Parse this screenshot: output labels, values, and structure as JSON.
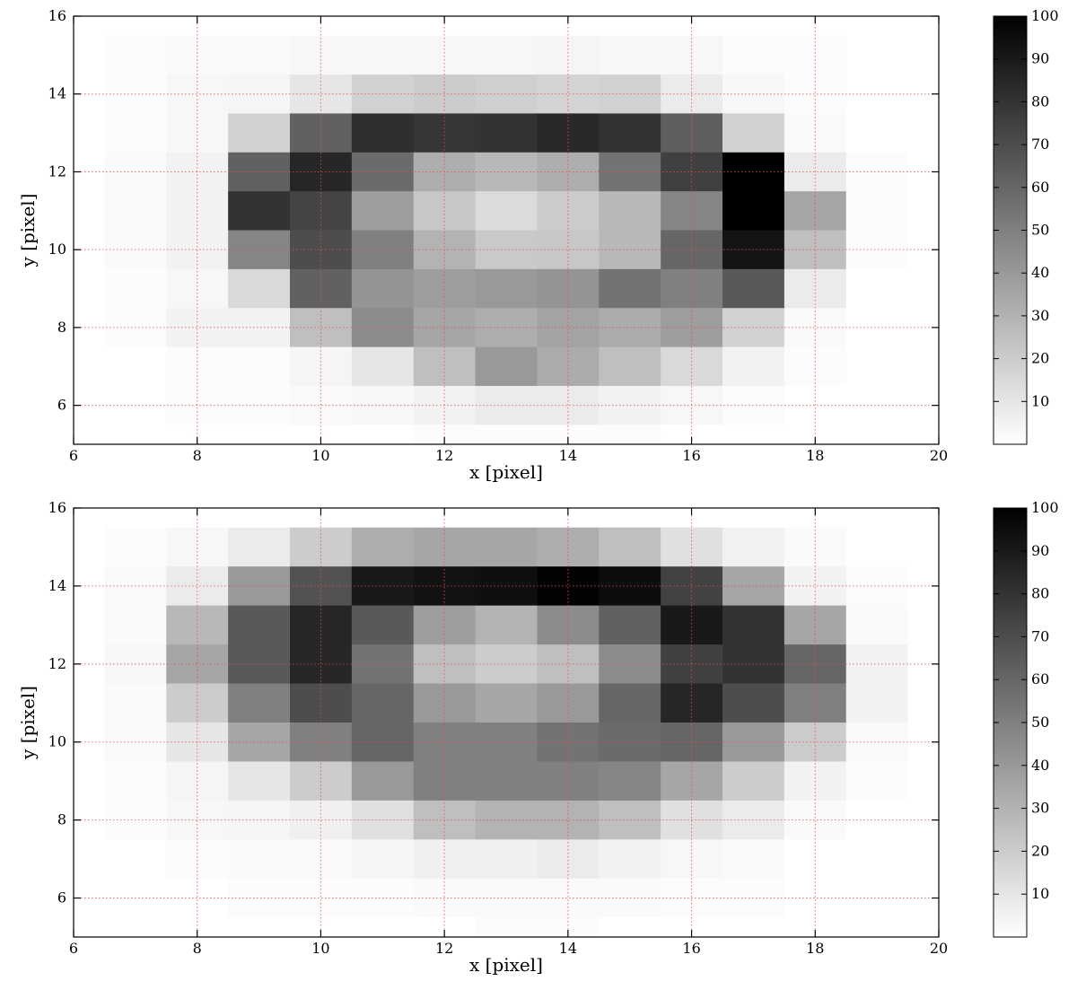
{
  "chart_data": [
    {
      "type": "heatmap",
      "colormap": "gray_r",
      "xlabel": "x [pixel]",
      "ylabel": "y [pixel]",
      "xlim": [
        6,
        20
      ],
      "ylim": [
        5,
        16
      ],
      "xticks": [
        "6",
        "8",
        "10",
        "12",
        "14",
        "16",
        "18",
        "20"
      ],
      "yticks": [
        "6",
        "8",
        "10",
        "12",
        "14",
        "16"
      ],
      "grid": true,
      "grid_color": "#e05050",
      "x_centers": [
        6,
        7,
        8,
        9,
        10,
        11,
        12,
        13,
        14,
        15,
        16,
        17,
        18,
        19,
        20
      ],
      "y_centers": [
        15,
        14,
        13,
        12,
        11,
        10,
        9,
        8,
        7,
        6,
        5
      ],
      "values": [
        [
          0,
          1,
          2,
          2,
          3,
          3,
          3,
          3,
          4,
          3,
          3,
          1,
          1,
          0,
          0
        ],
        [
          0,
          1,
          3,
          4,
          10,
          18,
          20,
          19,
          17,
          18,
          8,
          3,
          1,
          0,
          0
        ],
        [
          0,
          1,
          3,
          18,
          62,
          82,
          79,
          80,
          84,
          80,
          63,
          18,
          2,
          0,
          0
        ],
        [
          0,
          2,
          5,
          62,
          85,
          58,
          32,
          28,
          32,
          55,
          75,
          100,
          8,
          1,
          0
        ],
        [
          0,
          2,
          5,
          80,
          73,
          38,
          22,
          14,
          20,
          28,
          48,
          100,
          35,
          1,
          0
        ],
        [
          0,
          2,
          5,
          48,
          70,
          50,
          30,
          21,
          22,
          28,
          60,
          92,
          25,
          1,
          0
        ],
        [
          0,
          1,
          3,
          15,
          62,
          42,
          38,
          40,
          42,
          55,
          50,
          65,
          8,
          0,
          0
        ],
        [
          0,
          1,
          5,
          5,
          25,
          45,
          35,
          32,
          36,
          33,
          38,
          18,
          2,
          0,
          0
        ],
        [
          0,
          0,
          1,
          1,
          4,
          10,
          25,
          40,
          33,
          25,
          15,
          5,
          1,
          0,
          0
        ],
        [
          0,
          0,
          1,
          1,
          2,
          3,
          5,
          8,
          8,
          5,
          3,
          1,
          0,
          0,
          0
        ],
        [
          0,
          0,
          0,
          0,
          0,
          0,
          1,
          1,
          1,
          1,
          0,
          0,
          0,
          0,
          0
        ]
      ],
      "colorbar": {
        "min": 0,
        "max": 100,
        "ticks": [
          "10",
          "20",
          "30",
          "40",
          "50",
          "60",
          "70",
          "80",
          "90",
          "100"
        ]
      }
    },
    {
      "type": "heatmap",
      "colormap": "gray_r",
      "xlabel": "x [pixel]",
      "ylabel": "y [pixel]",
      "xlim": [
        6,
        20
      ],
      "ylim": [
        5,
        16
      ],
      "xticks": [
        "6",
        "8",
        "10",
        "12",
        "14",
        "16",
        "18",
        "20"
      ],
      "yticks": [
        "6",
        "8",
        "10",
        "12",
        "14",
        "16"
      ],
      "grid": true,
      "grid_color": "#e05050",
      "x_centers": [
        6,
        7,
        8,
        9,
        10,
        11,
        12,
        13,
        14,
        15,
        16,
        17,
        18,
        19,
        20
      ],
      "y_centers": [
        15,
        14,
        13,
        12,
        11,
        10,
        9,
        8,
        7,
        6,
        5
      ],
      "values": [
        [
          0,
          1,
          3,
          8,
          20,
          32,
          35,
          35,
          32,
          25,
          12,
          5,
          2,
          0,
          0
        ],
        [
          0,
          2,
          8,
          40,
          68,
          90,
          93,
          94,
          99,
          95,
          74,
          35,
          5,
          1,
          0
        ],
        [
          0,
          2,
          28,
          65,
          85,
          65,
          38,
          30,
          45,
          62,
          90,
          80,
          35,
          2,
          0
        ],
        [
          0,
          3,
          35,
          65,
          85,
          55,
          25,
          20,
          25,
          45,
          75,
          80,
          60,
          5,
          0
        ],
        [
          0,
          2,
          20,
          50,
          70,
          60,
          40,
          35,
          40,
          60,
          85,
          70,
          50,
          5,
          0
        ],
        [
          0,
          2,
          10,
          35,
          50,
          60,
          50,
          50,
          55,
          58,
          60,
          40,
          20,
          2,
          0
        ],
        [
          0,
          1,
          4,
          10,
          20,
          40,
          50,
          50,
          50,
          48,
          35,
          20,
          5,
          1,
          0
        ],
        [
          0,
          1,
          3,
          4,
          6,
          12,
          25,
          30,
          30,
          25,
          12,
          8,
          2,
          0,
          0
        ],
        [
          0,
          0,
          1,
          2,
          2,
          4,
          6,
          6,
          8,
          5,
          3,
          2,
          0,
          0,
          0
        ],
        [
          0,
          0,
          0,
          1,
          1,
          1,
          2,
          2,
          2,
          2,
          1,
          1,
          0,
          0,
          0
        ],
        [
          0,
          0,
          0,
          0,
          0,
          0,
          0,
          1,
          1,
          0,
          0,
          0,
          0,
          0,
          0
        ]
      ],
      "colorbar": {
        "min": 0,
        "max": 100,
        "ticks": [
          "10",
          "20",
          "30",
          "40",
          "50",
          "60",
          "70",
          "80",
          "90",
          "100"
        ]
      }
    }
  ]
}
